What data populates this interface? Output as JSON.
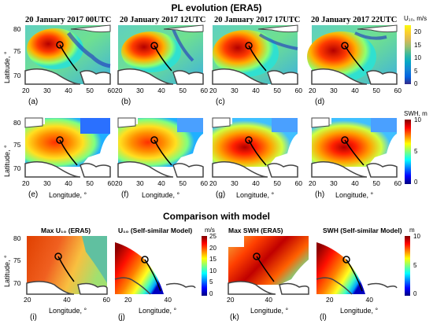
{
  "headings": {
    "row1": "PL evolution (ERA5)",
    "row3": "Comparison with model"
  },
  "row1": {
    "panels": [
      {
        "title": "20 January 2017 00UTC",
        "label": "(a)",
        "xticks": [
          "20",
          "30",
          "40",
          "50",
          "60"
        ]
      },
      {
        "title": "20 January 2017 12UTC",
        "label": "(b)",
        "xticks": [
          "20",
          "30",
          "40",
          "50",
          "60"
        ]
      },
      {
        "title": "20 January 2017 17UTC",
        "label": "(c)",
        "xticks": [
          "20",
          "30",
          "40",
          "50",
          "60"
        ]
      },
      {
        "title": "20 January 2017 22UTC",
        "label": "(d)",
        "xticks": [
          "20",
          "30",
          "40",
          "50",
          "60"
        ]
      }
    ],
    "ylabel": "Latitude, °",
    "yticks": [
      "80",
      "75",
      "70"
    ],
    "colorbar": {
      "label": "U₁₀, m/s",
      "ticks": [
        "20",
        "15",
        "10",
        "5",
        "0"
      ]
    }
  },
  "row2": {
    "panels": [
      {
        "label": "(e)",
        "xticks": [
          "20",
          "30",
          "40",
          "50",
          "60"
        ]
      },
      {
        "label": "(f)",
        "xticks": [
          "20",
          "30",
          "40",
          "50",
          "60"
        ]
      },
      {
        "label": "(g)",
        "xticks": [
          "20",
          "30",
          "40",
          "50",
          "60"
        ]
      },
      {
        "label": "(h)",
        "xticks": [
          "20",
          "30",
          "40",
          "50",
          "60"
        ]
      }
    ],
    "xlabel": "Longitude, °",
    "ylabel": "Latitude, °",
    "yticks": [
      "80",
      "75",
      "70"
    ],
    "colorbar": {
      "label": "SWH, m",
      "ticks": [
        "10",
        "5",
        "0"
      ]
    }
  },
  "row3": {
    "panels": [
      {
        "title": "Max U₁₀ (ERA5)",
        "label": "(i)",
        "xticks": [
          "20",
          "40",
          "60"
        ]
      },
      {
        "title": "U₁₀ (Self-similar Model)",
        "label": "(j)",
        "xticks": [
          "20",
          "40"
        ]
      },
      {
        "title": "Max SWH (ERA5)",
        "label": "(k)",
        "xticks": [
          "20",
          "40"
        ]
      },
      {
        "title": "SWH (Self-similar Model)",
        "label": "(l)",
        "xticks": [
          "20",
          "40"
        ]
      }
    ],
    "xlabel": "Longitude, °",
    "ylabel": "Latitude, °",
    "yticks": [
      "80",
      "75",
      "70"
    ],
    "colorbar_wind": {
      "label": "m/s",
      "ticks": [
        "25",
        "20",
        "15",
        "10",
        "5",
        "0"
      ]
    },
    "colorbar_wave": {
      "label": "m",
      "ticks": [
        "10",
        "5",
        "0"
      ]
    }
  },
  "colors": {
    "jet": [
      "#00007f",
      "#0000ff",
      "#007fff",
      "#00ffff",
      "#7fff7f",
      "#ffff00",
      "#ff7f00",
      "#ff0000",
      "#7f0000"
    ],
    "parula": [
      "#352a87",
      "#0363e1",
      "#1485d4",
      "#06a7c6",
      "#38b99e",
      "#92bf73",
      "#d9ba56",
      "#fcce2e",
      "#f9fb0e"
    ],
    "land": "#ffffff",
    "coast": "#444444"
  }
}
